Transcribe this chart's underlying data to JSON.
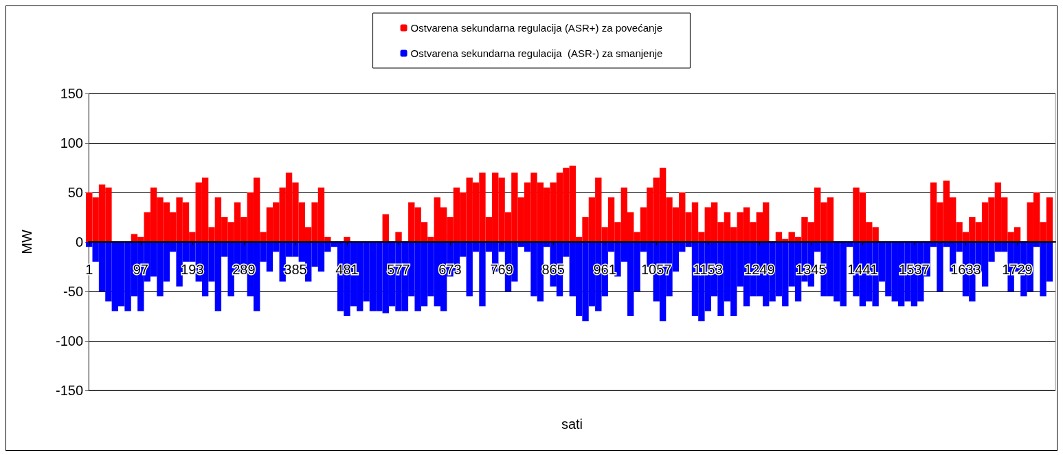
{
  "chart_data": {
    "type": "bar",
    "xlabel": "sati",
    "ylabel": "MW",
    "stacked": true,
    "grid": "y",
    "legend": "top",
    "xlim": [
      0,
      1800
    ],
    "xticks": [
      1,
      97,
      193,
      289,
      385,
      481,
      577,
      673,
      769,
      865,
      961,
      1057,
      1153,
      1249,
      1345,
      1441,
      1537,
      1633,
      1729
    ],
    "ylim": [
      -150,
      150
    ],
    "yticks": [
      -150,
      -100,
      -50,
      0,
      50,
      100,
      150
    ],
    "x": [
      1,
      13,
      25,
      37,
      49,
      61,
      73,
      85,
      97,
      109,
      121,
      133,
      145,
      157,
      169,
      181,
      193,
      205,
      217,
      229,
      241,
      253,
      265,
      277,
      289,
      301,
      313,
      325,
      337,
      349,
      361,
      373,
      385,
      397,
      409,
      421,
      433,
      445,
      457,
      469,
      481,
      493,
      505,
      517,
      529,
      541,
      553,
      565,
      577,
      589,
      601,
      613,
      625,
      637,
      649,
      661,
      673,
      685,
      697,
      709,
      721,
      733,
      745,
      757,
      769,
      781,
      793,
      805,
      817,
      829,
      841,
      853,
      865,
      877,
      889,
      901,
      913,
      925,
      937,
      949,
      961,
      973,
      985,
      997,
      1009,
      1021,
      1033,
      1045,
      1057,
      1069,
      1081,
      1093,
      1105,
      1117,
      1129,
      1141,
      1153,
      1165,
      1177,
      1189,
      1201,
      1213,
      1225,
      1237,
      1249,
      1261,
      1273,
      1285,
      1297,
      1309,
      1321,
      1333,
      1345,
      1357,
      1369,
      1381,
      1393,
      1405,
      1417,
      1429,
      1441,
      1453,
      1465,
      1477,
      1489,
      1501,
      1513,
      1525,
      1537,
      1549,
      1561,
      1573,
      1585,
      1597,
      1609,
      1621,
      1633,
      1645,
      1657,
      1669,
      1681,
      1693,
      1705,
      1717,
      1729,
      1741,
      1753,
      1765,
      1777,
      1789
    ],
    "series": [
      {
        "name": "Ostvarena sekundarna regulacija (ASR+) za povećanje",
        "color": "#ff0000",
        "values": [
          50,
          45,
          58,
          55,
          0,
          0,
          0,
          8,
          5,
          30,
          55,
          45,
          40,
          30,
          45,
          40,
          10,
          60,
          65,
          15,
          45,
          25,
          20,
          40,
          25,
          50,
          65,
          10,
          35,
          40,
          55,
          70,
          60,
          40,
          15,
          40,
          55,
          5,
          0,
          0,
          5,
          0,
          0,
          0,
          0,
          0,
          28,
          0,
          10,
          0,
          40,
          35,
          20,
          5,
          45,
          35,
          25,
          55,
          50,
          65,
          60,
          70,
          25,
          70,
          65,
          30,
          70,
          45,
          60,
          70,
          60,
          55,
          60,
          70,
          75,
          77,
          5,
          25,
          45,
          65,
          15,
          45,
          20,
          55,
          30,
          10,
          35,
          55,
          65,
          75,
          45,
          35,
          50,
          30,
          40,
          10,
          35,
          40,
          20,
          30,
          15,
          30,
          35,
          20,
          30,
          40,
          0,
          10,
          3,
          10,
          5,
          25,
          20,
          55,
          40,
          45,
          0,
          0,
          0,
          55,
          50,
          20,
          15,
          0,
          0,
          0,
          0,
          0,
          0,
          0,
          0,
          60,
          40,
          62,
          45,
          20,
          10,
          25,
          20,
          40,
          45,
          60,
          45,
          10,
          15,
          0,
          40,
          50,
          20,
          45
        ]
      },
      {
        "name": "Ostvarena sekundarna regulacija  (ASR-) za smanjenje",
        "color": "#0000ff",
        "values": [
          -5,
          -20,
          -50,
          -60,
          -70,
          -65,
          -70,
          -55,
          -70,
          -40,
          -35,
          -55,
          -40,
          -10,
          -45,
          -20,
          -20,
          -40,
          -55,
          -40,
          -70,
          -15,
          -55,
          -30,
          -30,
          -55,
          -70,
          -20,
          -30,
          -10,
          -40,
          -15,
          -15,
          -20,
          -40,
          -25,
          -30,
          -10,
          -5,
          -70,
          -75,
          -65,
          -70,
          -60,
          -70,
          -70,
          -72,
          -65,
          -70,
          -70,
          -55,
          -70,
          -65,
          -55,
          -65,
          -70,
          -35,
          -30,
          -15,
          -55,
          -10,
          -65,
          -10,
          -30,
          -10,
          -50,
          -40,
          -5,
          -10,
          -55,
          -60,
          -5,
          -45,
          -55,
          -15,
          -55,
          -75,
          -80,
          -65,
          -70,
          -55,
          -10,
          -35,
          -20,
          -75,
          -50,
          -10,
          -25,
          -60,
          -80,
          -55,
          -30,
          -10,
          -5,
          -75,
          -80,
          -70,
          -55,
          -75,
          -60,
          -75,
          -45,
          -65,
          -55,
          -55,
          -65,
          -60,
          -55,
          -65,
          -45,
          -60,
          -40,
          -45,
          -10,
          -55,
          -55,
          -60,
          -65,
          -5,
          -55,
          -65,
          -60,
          -65,
          -40,
          -55,
          -60,
          -65,
          -60,
          -65,
          -60,
          -35,
          -5,
          -50,
          -5,
          -30,
          -10,
          -55,
          -60,
          -30,
          -45,
          -20,
          -10,
          -10,
          -50,
          -30,
          -55,
          -50,
          -5,
          -55,
          -40
        ]
      }
    ]
  }
}
